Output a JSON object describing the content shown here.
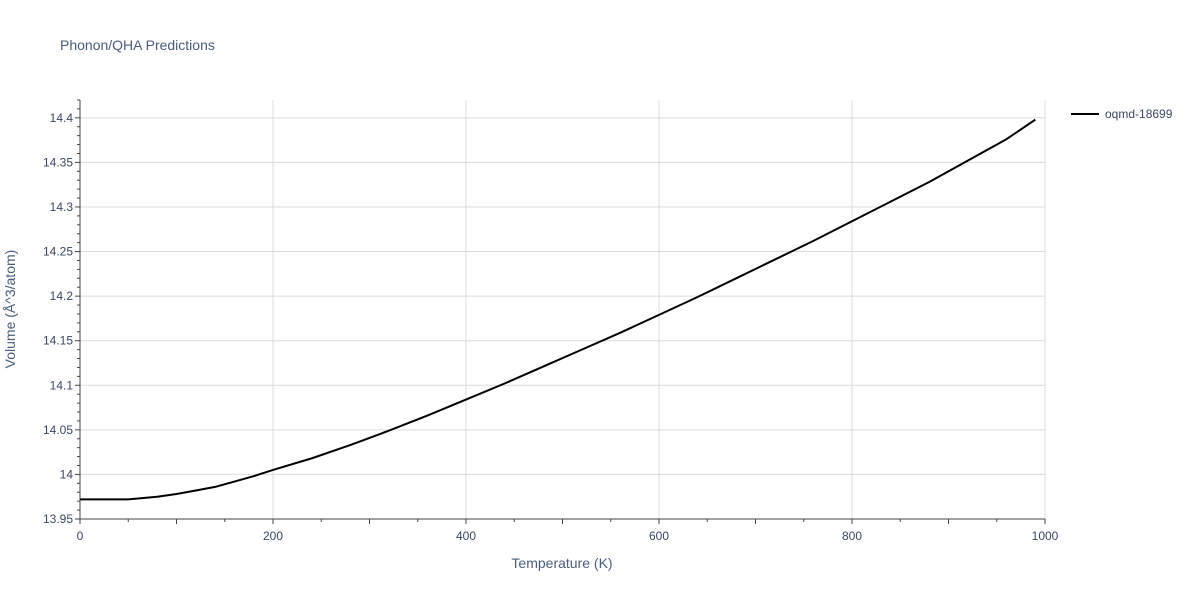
{
  "chart_data": {
    "type": "line",
    "title": "Phonon/QHA Predictions",
    "xlabel": "Temperature (K)",
    "ylabel": "Volume (Å^3/atom)",
    "xlim": [
      0,
      1000
    ],
    "ylim": [
      13.95,
      14.42
    ],
    "x_ticks": [
      0,
      200,
      400,
      600,
      800,
      1000
    ],
    "x_tick_labels": [
      "0",
      "200",
      "400",
      "600",
      "800",
      "1000"
    ],
    "y_ticks": [
      13.95,
      14,
      14.05,
      14.1,
      14.15,
      14.2,
      14.25,
      14.3,
      14.35,
      14.4
    ],
    "y_tick_labels": [
      "13.95",
      "14",
      "14.05",
      "14.1",
      "14.15",
      "14.2",
      "14.25",
      "14.3",
      "14.35",
      "14.4"
    ],
    "grid": true,
    "legend_position": "top-right",
    "series": [
      {
        "name": "oqmd-18699",
        "color": "#000000",
        "x": [
          0,
          10,
          30,
          50,
          60,
          80,
          100,
          120,
          140,
          160,
          180,
          200,
          240,
          280,
          320,
          360,
          400,
          440,
          480,
          520,
          560,
          600,
          640,
          680,
          720,
          760,
          800,
          840,
          880,
          920,
          960,
          990
        ],
        "y": [
          13.972,
          13.972,
          13.972,
          13.972,
          13.973,
          13.975,
          13.978,
          13.982,
          13.986,
          13.992,
          13.998,
          14.005,
          14.018,
          14.033,
          14.049,
          14.066,
          14.084,
          14.102,
          14.121,
          14.14,
          14.159,
          14.179,
          14.199,
          14.22,
          14.241,
          14.262,
          14.284,
          14.306,
          14.328,
          14.352,
          14.376,
          14.398
        ]
      }
    ]
  }
}
